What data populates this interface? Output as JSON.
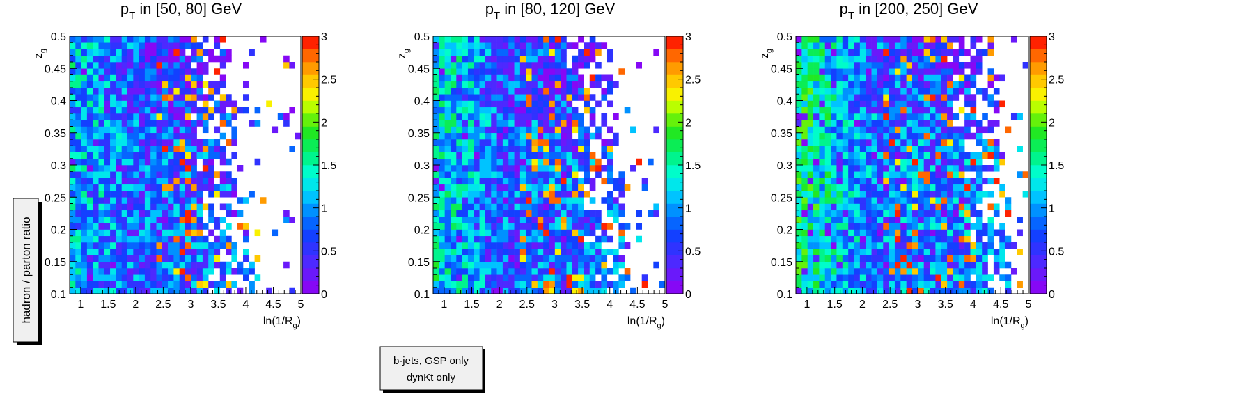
{
  "chart_data": [
    {
      "type": "heatmap",
      "title_main": "p",
      "title_sub": "T",
      "title_rest": " in [50, 80] GeV",
      "xlabel_main": "ln(1/R",
      "xlabel_sub": "g",
      "xlabel_end": ")",
      "ylabel_main": "z",
      "ylabel_sub": "g",
      "xlim": [
        0.8,
        5.0
      ],
      "ylim": [
        0.1,
        0.5
      ],
      "x_ticks": [
        "1",
        "1.5",
        "2",
        "2.5",
        "3",
        "3.5",
        "4",
        "4.5",
        "5"
      ],
      "y_ticks": [
        "0.1",
        "0.15",
        "0.2",
        "0.25",
        "0.3",
        "0.35",
        "0.4",
        "0.45",
        "0.5"
      ],
      "colorbar_ticks": [
        "0",
        "0.5",
        "1",
        "1.5",
        "2",
        "2.5",
        "3"
      ],
      "zlim": [
        0,
        3
      ],
      "note": "",
      "seed": 11,
      "density_shift": 0.0,
      "mean_level": 0.75,
      "cutoff_x": 4.15,
      "bins_x": 40,
      "bins_y": 40
    },
    {
      "type": "heatmap",
      "title_main": "p",
      "title_sub": "T",
      "title_rest": " in [80, 120] GeV",
      "xlabel_main": "ln(1/R",
      "xlabel_sub": "g",
      "xlabel_end": ")",
      "ylabel_main": "z",
      "ylabel_sub": "g",
      "xlim": [
        0.8,
        5.0
      ],
      "ylim": [
        0.1,
        0.5
      ],
      "x_ticks": [
        "1",
        "1.5",
        "2",
        "2.5",
        "3",
        "3.5",
        "4",
        "4.5",
        "5"
      ],
      "y_ticks": [
        "0.1",
        "0.15",
        "0.2",
        "0.25",
        "0.3",
        "0.35",
        "0.4",
        "0.45",
        "0.5"
      ],
      "colorbar_ticks": [
        "0",
        "0.5",
        "1",
        "1.5",
        "2",
        "2.5",
        "3"
      ],
      "zlim": [
        0,
        3
      ],
      "seed": 23,
      "density_shift": 0.25,
      "mean_level": 0.8,
      "cutoff_x": 4.45,
      "bins_x": 40,
      "bins_y": 40
    },
    {
      "type": "heatmap",
      "title_main": "p",
      "title_sub": "T",
      "title_rest": " in [200, 250] GeV",
      "xlabel_main": "ln(1/R",
      "xlabel_sub": "g",
      "xlabel_end": ")",
      "ylabel_main": "z",
      "ylabel_sub": "g",
      "xlim": [
        0.8,
        5.0
      ],
      "ylim": [
        0.1,
        0.5
      ],
      "x_ticks": [
        "1",
        "1.5",
        "2",
        "2.5",
        "3",
        "3.5",
        "4",
        "4.5",
        "5"
      ],
      "y_ticks": [
        "0.1",
        "0.15",
        "0.2",
        "0.25",
        "0.3",
        "0.35",
        "0.4",
        "0.45",
        "0.5"
      ],
      "colorbar_ticks": [
        "0",
        "0.5",
        "1",
        "1.5",
        "2",
        "2.5",
        "3"
      ],
      "zlim": [
        0,
        3
      ],
      "seed": 37,
      "density_shift": 0.55,
      "mean_level": 0.9,
      "cutoff_x": 4.8,
      "bins_x": 40,
      "bins_y": 40
    }
  ],
  "side_label": "hadron / parton ratio",
  "legend_box": {
    "line1": "b-jets, GSP only",
    "line2": "dynKt only"
  }
}
